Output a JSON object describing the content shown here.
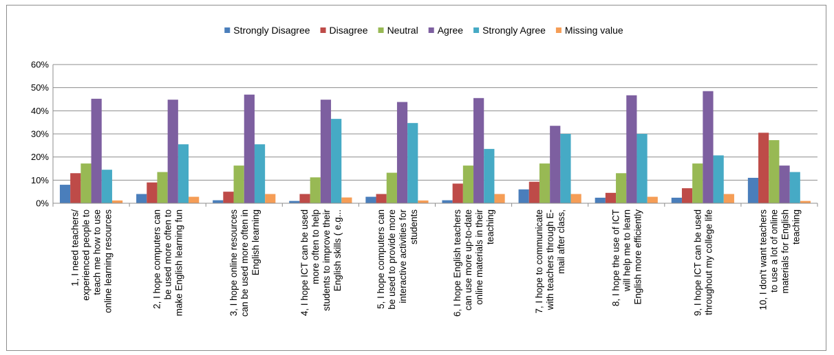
{
  "chart_data": {
    "type": "bar",
    "title": "",
    "xlabel": "",
    "ylabel": "",
    "ylim": [
      0,
      0.6
    ],
    "yticks": [
      "0%",
      "10%",
      "20%",
      "30%",
      "40%",
      "50%",
      "60%"
    ],
    "grid": true,
    "legend_position": "top",
    "categories": [
      [
        "1, I need teachers/",
        "experienced people to",
        "teach me how to use",
        "online learning resources"
      ],
      [
        "2, I hope computers can",
        "be used more often to",
        "make English learning fun"
      ],
      [
        "3, I hope online resources",
        "can be used more often in",
        "English learning"
      ],
      [
        "4, I hope ICT can be used",
        "more often to help",
        "students to improve their",
        "English skills ( e.g..."
      ],
      [
        "5, I hope computers can",
        "be used to provide more",
        "interactive activities for",
        "students"
      ],
      [
        "6, I hope English teachers",
        "can use more up-to-date",
        "online materials in their",
        "teaching"
      ],
      [
        "7, I hope to communicate",
        "with teachers through E-",
        "mail after class,"
      ],
      [
        "8, I hope the use of ICT",
        "will help me to learn",
        "English more efficiently"
      ],
      [
        "9, I hope ICT can be used",
        "throughout my college life"
      ],
      [
        "10, I don't want teachers",
        "to use a lot of online",
        "materials for English",
        "teaching"
      ]
    ],
    "series": [
      {
        "name": "Strongly Disagree",
        "color": "#4a7ebb",
        "values": [
          0.08,
          0.04,
          0.013,
          0.01,
          0.028,
          0.013,
          0.06,
          0.024,
          0.024,
          0.11
        ]
      },
      {
        "name": "Disagree",
        "color": "#be4b48",
        "values": [
          0.13,
          0.09,
          0.05,
          0.04,
          0.04,
          0.085,
          0.093,
          0.045,
          0.065,
          0.305
        ]
      },
      {
        "name": "Neutral",
        "color": "#98b954",
        "values": [
          0.172,
          0.135,
          0.163,
          0.112,
          0.132,
          0.163,
          0.172,
          0.13,
          0.172,
          0.273
        ]
      },
      {
        "name": "Agree",
        "color": "#7d5fa0",
        "values": [
          0.452,
          0.448,
          0.47,
          0.448,
          0.438,
          0.455,
          0.335,
          0.467,
          0.485,
          0.163
        ]
      },
      {
        "name": "Strongly Agree",
        "color": "#46aac5",
        "values": [
          0.145,
          0.255,
          0.255,
          0.365,
          0.347,
          0.235,
          0.3,
          0.3,
          0.207,
          0.135
        ]
      },
      {
        "name": "Missing value",
        "color": "#f59d56",
        "values": [
          0.012,
          0.028,
          0.04,
          0.025,
          0.012,
          0.04,
          0.04,
          0.028,
          0.04,
          0.01
        ]
      }
    ]
  }
}
